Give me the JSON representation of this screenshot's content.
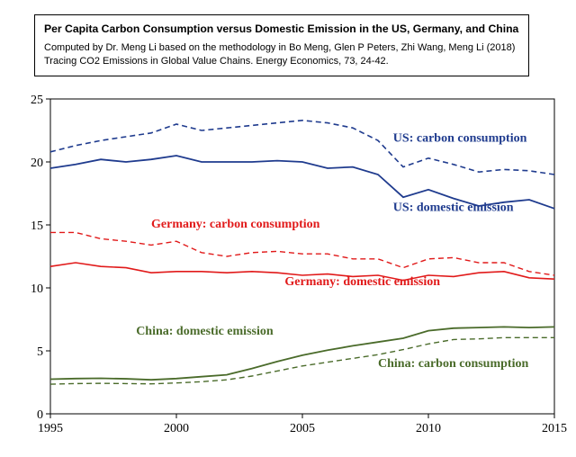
{
  "header": {
    "title": "Per Capita Carbon Consumption versus Domestic Emission in the US, Germany, and China",
    "subtitle_prefix": "Computed by Dr. Meng Li based on the methodology in ",
    "subtitle_citation": "Bo Meng, Glen P Peters, Zhi Wang, Meng Li (2018) Tracing CO2 Emissions in Global Value Chains. Energy Economics, 73, 24-42."
  },
  "chart": {
    "type": "line",
    "background_color": "#ffffff",
    "axis_color": "#000000",
    "tick_length": 5,
    "axis_line_width": 1,
    "x": {
      "min": 1995,
      "max": 2015,
      "ticks": [
        1995,
        2000,
        2005,
        2010,
        2015
      ],
      "fontsize": 14
    },
    "y": {
      "min": 0,
      "max": 25,
      "ticks": [
        0,
        5,
        10,
        15,
        20,
        25
      ],
      "fontsize": 14
    },
    "label_fontsize": 14,
    "label_fontweight": "bold",
    "series": [
      {
        "id": "us_consumption",
        "label": "US: carbon consumption",
        "color": "#1f3b8e",
        "line_width": 1.6,
        "dash": "6,4",
        "label_xy": [
          2008.6,
          21.6
        ],
        "data": [
          [
            1995,
            20.8
          ],
          [
            1996,
            21.3
          ],
          [
            1997,
            21.7
          ],
          [
            1998,
            22.0
          ],
          [
            1999,
            22.3
          ],
          [
            2000,
            23.0
          ],
          [
            2001,
            22.5
          ],
          [
            2002,
            22.7
          ],
          [
            2003,
            22.9
          ],
          [
            2004,
            23.1
          ],
          [
            2005,
            23.3
          ],
          [
            2006,
            23.1
          ],
          [
            2007,
            22.7
          ],
          [
            2008,
            21.7
          ],
          [
            2009,
            19.6
          ],
          [
            2010,
            20.3
          ],
          [
            2011,
            19.8
          ],
          [
            2012,
            19.2
          ],
          [
            2013,
            19.4
          ],
          [
            2014,
            19.3
          ],
          [
            2015,
            19.0
          ]
        ]
      },
      {
        "id": "us_emission",
        "label": "US: domestic emission",
        "color": "#1f3b8e",
        "line_width": 1.8,
        "dash": "",
        "label_xy": [
          2008.6,
          16.1
        ],
        "data": [
          [
            1995,
            19.5
          ],
          [
            1996,
            19.8
          ],
          [
            1997,
            20.2
          ],
          [
            1998,
            20.0
          ],
          [
            1999,
            20.2
          ],
          [
            2000,
            20.5
          ],
          [
            2001,
            20.0
          ],
          [
            2002,
            20.0
          ],
          [
            2003,
            20.0
          ],
          [
            2004,
            20.1
          ],
          [
            2005,
            20.0
          ],
          [
            2006,
            19.5
          ],
          [
            2007,
            19.6
          ],
          [
            2008,
            19.0
          ],
          [
            2009,
            17.2
          ],
          [
            2010,
            17.8
          ],
          [
            2011,
            17.1
          ],
          [
            2012,
            16.5
          ],
          [
            2013,
            16.8
          ],
          [
            2014,
            17.0
          ],
          [
            2015,
            16.3
          ]
        ]
      },
      {
        "id": "de_consumption",
        "label": "Germany: carbon consumption",
        "color": "#e11a1a",
        "line_width": 1.4,
        "dash": "6,4",
        "label_xy": [
          1999.0,
          14.8
        ],
        "data": [
          [
            1995,
            14.4
          ],
          [
            1996,
            14.4
          ],
          [
            1997,
            13.9
          ],
          [
            1998,
            13.7
          ],
          [
            1999,
            13.4
          ],
          [
            2000,
            13.7
          ],
          [
            2001,
            12.8
          ],
          [
            2002,
            12.5
          ],
          [
            2003,
            12.8
          ],
          [
            2004,
            12.9
          ],
          [
            2005,
            12.7
          ],
          [
            2006,
            12.7
          ],
          [
            2007,
            12.3
          ],
          [
            2008,
            12.3
          ],
          [
            2009,
            11.6
          ],
          [
            2010,
            12.3
          ],
          [
            2011,
            12.4
          ],
          [
            2012,
            12.0
          ],
          [
            2013,
            12.0
          ],
          [
            2014,
            11.3
          ],
          [
            2015,
            11.0
          ]
        ]
      },
      {
        "id": "de_emission",
        "label": "Germany: domestic emission",
        "color": "#e11a1a",
        "line_width": 1.6,
        "dash": "",
        "label_xy": [
          2004.3,
          10.2
        ],
        "data": [
          [
            1995,
            11.7
          ],
          [
            1996,
            12.0
          ],
          [
            1997,
            11.7
          ],
          [
            1998,
            11.6
          ],
          [
            1999,
            11.2
          ],
          [
            2000,
            11.3
          ],
          [
            2001,
            11.3
          ],
          [
            2002,
            11.2
          ],
          [
            2003,
            11.3
          ],
          [
            2004,
            11.2
          ],
          [
            2005,
            11.0
          ],
          [
            2006,
            11.1
          ],
          [
            2007,
            10.9
          ],
          [
            2008,
            11.0
          ],
          [
            2009,
            10.6
          ],
          [
            2010,
            11.0
          ],
          [
            2011,
            10.9
          ],
          [
            2012,
            11.2
          ],
          [
            2013,
            11.3
          ],
          [
            2014,
            10.8
          ],
          [
            2015,
            10.7
          ]
        ]
      },
      {
        "id": "cn_emission",
        "label": "China: domestic emission",
        "color": "#4a6b2a",
        "line_width": 1.8,
        "dash": "",
        "label_xy": [
          1998.4,
          6.3
        ],
        "data": [
          [
            1995,
            2.75
          ],
          [
            1996,
            2.8
          ],
          [
            1997,
            2.82
          ],
          [
            1998,
            2.78
          ],
          [
            1999,
            2.7
          ],
          [
            2000,
            2.8
          ],
          [
            2001,
            2.95
          ],
          [
            2002,
            3.1
          ],
          [
            2003,
            3.6
          ],
          [
            2004,
            4.15
          ],
          [
            2005,
            4.65
          ],
          [
            2006,
            5.05
          ],
          [
            2007,
            5.4
          ],
          [
            2008,
            5.7
          ],
          [
            2009,
            6.0
          ],
          [
            2010,
            6.6
          ],
          [
            2011,
            6.8
          ],
          [
            2012,
            6.85
          ],
          [
            2013,
            6.9
          ],
          [
            2014,
            6.85
          ],
          [
            2015,
            6.9
          ]
        ]
      },
      {
        "id": "cn_consumption",
        "label": "China: carbon consumption",
        "color": "#4a6b2a",
        "line_width": 1.4,
        "dash": "6,4",
        "label_xy": [
          2008.0,
          3.7
        ],
        "data": [
          [
            1995,
            2.35
          ],
          [
            1996,
            2.4
          ],
          [
            1997,
            2.42
          ],
          [
            1998,
            2.4
          ],
          [
            1999,
            2.38
          ],
          [
            2000,
            2.45
          ],
          [
            2001,
            2.55
          ],
          [
            2002,
            2.7
          ],
          [
            2003,
            3.0
          ],
          [
            2004,
            3.4
          ],
          [
            2005,
            3.8
          ],
          [
            2006,
            4.1
          ],
          [
            2007,
            4.4
          ],
          [
            2008,
            4.7
          ],
          [
            2009,
            5.1
          ],
          [
            2010,
            5.55
          ],
          [
            2011,
            5.9
          ],
          [
            2012,
            5.95
          ],
          [
            2013,
            6.05
          ],
          [
            2014,
            6.05
          ],
          [
            2015,
            6.05
          ]
        ]
      }
    ]
  }
}
